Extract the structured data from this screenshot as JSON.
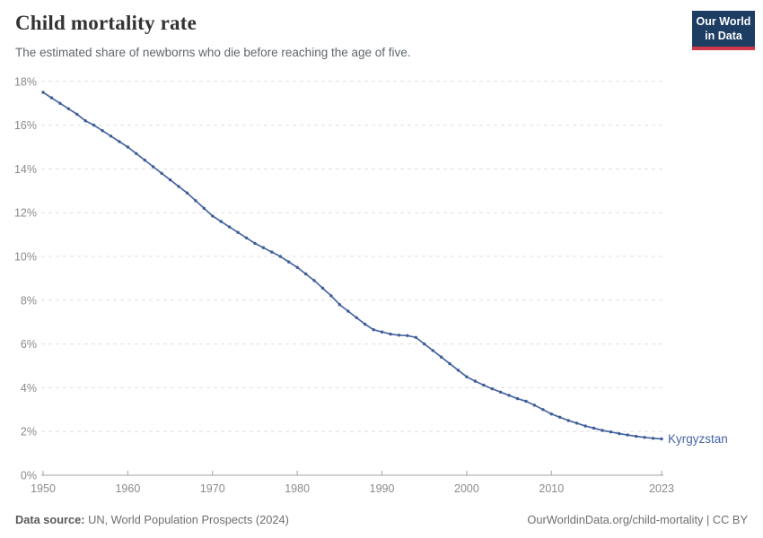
{
  "header": {
    "title": "Child mortality rate",
    "subtitle": "The estimated share of newborns who die before reaching the age of five.",
    "logo": {
      "line1": "Our World",
      "line2": "in Data"
    }
  },
  "footer": {
    "source_label": "Data source:",
    "source_text": " UN, World Population Prospects (2024)",
    "link": "OurWorldinData.org/child-mortality | CC BY"
  },
  "colors": {
    "accent": "#4766a2",
    "marker": "#3e5d97",
    "logo_bg": "#1d3d63",
    "logo_stripe": "#d0394a",
    "grid": "#e0e0e0",
    "axis": "#a3a3a3",
    "tick_label": "#8b8b8b"
  },
  "chart_data": {
    "type": "line",
    "title": "Child mortality rate",
    "subtitle": "The estimated share of newborns who die before reaching the age of five.",
    "xlabel": "",
    "ylabel": "",
    "xlim": [
      1950,
      2023
    ],
    "ylim": [
      0,
      18
    ],
    "y_ticks": [
      0,
      2,
      4,
      6,
      8,
      10,
      12,
      14,
      16,
      18
    ],
    "y_tick_suffix": "%",
    "x_ticks": [
      1950,
      1960,
      1970,
      1980,
      1990,
      2000,
      2010,
      2023
    ],
    "grid": "horizontal dashed",
    "legend": "end-of-line label",
    "series": [
      {
        "name": "Kyrgyzstan",
        "color": "#4766a2",
        "x": [
          1950,
          1951,
          1952,
          1953,
          1954,
          1955,
          1956,
          1957,
          1958,
          1959,
          1960,
          1961,
          1962,
          1963,
          1964,
          1965,
          1966,
          1967,
          1968,
          1969,
          1970,
          1971,
          1972,
          1973,
          1974,
          1975,
          1976,
          1977,
          1978,
          1979,
          1980,
          1981,
          1982,
          1983,
          1984,
          1985,
          1986,
          1987,
          1988,
          1989,
          1990,
          1991,
          1992,
          1993,
          1994,
          1995,
          1996,
          1997,
          1998,
          1999,
          2000,
          2001,
          2002,
          2003,
          2004,
          2005,
          2006,
          2007,
          2008,
          2009,
          2010,
          2011,
          2012,
          2013,
          2014,
          2015,
          2016,
          2017,
          2018,
          2019,
          2020,
          2021,
          2022,
          2023
        ],
        "y": [
          17.5,
          17.25,
          17.0,
          16.75,
          16.5,
          16.2,
          16.0,
          15.75,
          15.5,
          15.25,
          15.0,
          14.7,
          14.4,
          14.1,
          13.8,
          13.5,
          13.2,
          12.9,
          12.55,
          12.2,
          11.85,
          11.6,
          11.35,
          11.1,
          10.85,
          10.6,
          10.4,
          10.2,
          10.0,
          9.75,
          9.5,
          9.2,
          8.9,
          8.55,
          8.2,
          7.8,
          7.5,
          7.2,
          6.9,
          6.65,
          6.55,
          6.45,
          6.4,
          6.38,
          6.3,
          6.0,
          5.7,
          5.4,
          5.1,
          4.8,
          4.5,
          4.3,
          4.12,
          3.95,
          3.8,
          3.65,
          3.5,
          3.38,
          3.2,
          3.0,
          2.8,
          2.65,
          2.5,
          2.38,
          2.25,
          2.15,
          2.05,
          1.98,
          1.9,
          1.84,
          1.78,
          1.73,
          1.69,
          1.66
        ]
      }
    ]
  }
}
